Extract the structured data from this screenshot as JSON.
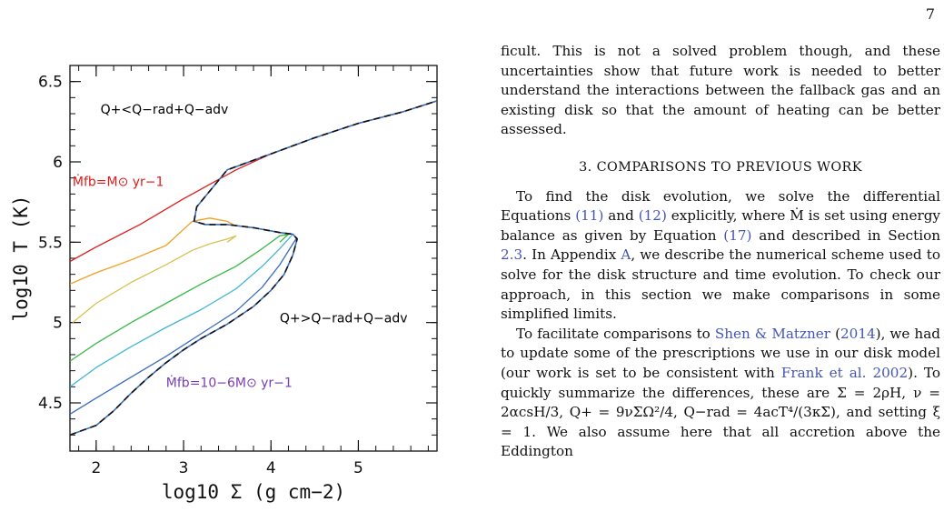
{
  "page_number": "7",
  "figure": {
    "chart_data": {
      "type": "line",
      "title": "",
      "xlabel": "log10 Σ (g cm−2)",
      "ylabel": "log10 T (K)",
      "xlim": [
        1.7,
        5.9
      ],
      "ylim": [
        4.2,
        6.6
      ],
      "x_ticks": [
        "2",
        "3",
        "4",
        "5"
      ],
      "y_ticks": [
        "4.5",
        "5",
        "5.5",
        "6",
        "6.5"
      ],
      "grid": false,
      "annotations": [
        {
          "text": "Q+<Q−rad+Q−adv",
          "x": 2.05,
          "y": 6.3,
          "color": "#000000"
        },
        {
          "text": "Q+>Q−rad+Q−adv",
          "x": 4.1,
          "y": 5.0,
          "color": "#000000"
        },
        {
          "text": "Ṁfb=M⊙ yr−1",
          "x": 1.73,
          "y": 5.85,
          "color": "#e01b1b"
        },
        {
          "text": "Ṁfb=10−6M⊙ yr−1",
          "x": 2.8,
          "y": 4.6,
          "color": "#7a3db0"
        }
      ],
      "series": [
        {
          "color": "#e01b1b",
          "x": [
            1.7,
            2.0,
            2.5,
            3.0,
            3.1,
            3.3,
            3.6,
            4.0,
            4.5,
            5.0,
            5.5,
            5.9
          ],
          "y": [
            5.38,
            5.47,
            5.61,
            5.77,
            5.8,
            5.86,
            5.95,
            6.05,
            6.15,
            6.24,
            6.31,
            6.38
          ]
        },
        {
          "color": "#f0a020",
          "x": [
            1.7,
            2.0,
            2.4,
            2.8,
            3.0,
            3.1,
            3.3,
            3.5,
            3.6
          ],
          "y": [
            5.24,
            5.31,
            5.39,
            5.48,
            5.58,
            5.63,
            5.65,
            5.63,
            5.6
          ]
        },
        {
          "color": "#d8c050",
          "x": [
            1.73,
            2.0,
            2.4,
            2.8,
            3.1,
            3.3,
            3.5,
            3.6,
            3.5
          ],
          "y": [
            5.0,
            5.12,
            5.25,
            5.36,
            5.45,
            5.49,
            5.52,
            5.54,
            5.5
          ]
        },
        {
          "color": "#38b848",
          "x": [
            1.7,
            2.0,
            2.4,
            2.8,
            3.2,
            3.6,
            3.9,
            4.1,
            4.2,
            4.1
          ],
          "y": [
            4.76,
            4.87,
            5.0,
            5.12,
            5.24,
            5.35,
            5.46,
            5.54,
            5.55,
            5.5
          ]
        },
        {
          "color": "#40b8d0",
          "x": [
            1.7,
            2.0,
            2.4,
            2.8,
            3.2,
            3.6,
            3.9,
            4.1,
            4.2,
            4.25
          ],
          "y": [
            4.6,
            4.72,
            4.85,
            4.97,
            5.08,
            5.21,
            5.35,
            5.46,
            5.52,
            5.55
          ]
        },
        {
          "color": "#3a6cc0",
          "x": [
            1.7,
            2.0,
            2.4,
            2.8,
            3.2,
            3.6,
            3.9,
            4.1,
            4.25,
            4.3
          ],
          "y": [
            4.43,
            4.53,
            4.66,
            4.79,
            4.93,
            5.07,
            5.22,
            5.36,
            5.49,
            5.53
          ]
        },
        {
          "color": "#111111",
          "dashed": true,
          "x": [
            1.7,
            2.0,
            2.2,
            2.4,
            2.6,
            2.8,
            3.0,
            3.2,
            3.5,
            3.8,
            4.0,
            4.15,
            4.25,
            4.3,
            4.25,
            4.1,
            3.8,
            3.5,
            3.25,
            3.12,
            3.15,
            3.5,
            4.0,
            4.5,
            5.0,
            5.5,
            5.9
          ],
          "y": [
            4.3,
            4.36,
            4.45,
            4.56,
            4.66,
            4.75,
            4.83,
            4.9,
            4.99,
            5.1,
            5.2,
            5.3,
            5.42,
            5.52,
            5.55,
            5.56,
            5.59,
            5.61,
            5.61,
            5.63,
            5.72,
            5.95,
            6.05,
            6.15,
            6.24,
            6.31,
            6.38
          ]
        }
      ]
    }
  },
  "text": {
    "para1": "ficult. This is not a solved problem though, and these uncertainties show that future work is needed to better understand the interactions between the fallback gas and an existing disk so that the amount of heating can be better assessed.",
    "section_heading": "3. COMPARISONS TO PREVIOUS WORK",
    "p2_a": "To find the disk evolution, we solve the differential Equations ",
    "ref_eq11": "(11)",
    "p2_b": " and ",
    "ref_eq12": "(12)",
    "p2_c": " explicitly, where Ṁ is set using energy balance as given by Equation ",
    "ref_eq17": "(17)",
    "p2_d": " and described in Section ",
    "ref_sec23": "2.3",
    "p2_e": ". In Appendix ",
    "ref_appA": "A",
    "p2_f": ", we describe the numerical scheme used to solve for the disk structure and time evolution. To check our approach, in this section we make comparisons in some simplified limits.",
    "p3_a": "To facilitate comparisons to ",
    "ref_shen": "Shen & Matzner",
    "p3_b": " (",
    "ref_shen_year": "2014",
    "p3_c": "), we had to update some of the prescriptions we use in our disk model (our work is set to be consistent with ",
    "ref_frank": "Frank et al. 2002",
    "p3_d": "). To quickly summarize the differences, these are Σ = 2ρH, ν = 2αcsH/3, Q+ = 9νΣΩ²/4, Q−rad = 4acT⁴/(3κΣ), and setting ξ = 1. We also assume here that all accretion above the Eddington"
  }
}
